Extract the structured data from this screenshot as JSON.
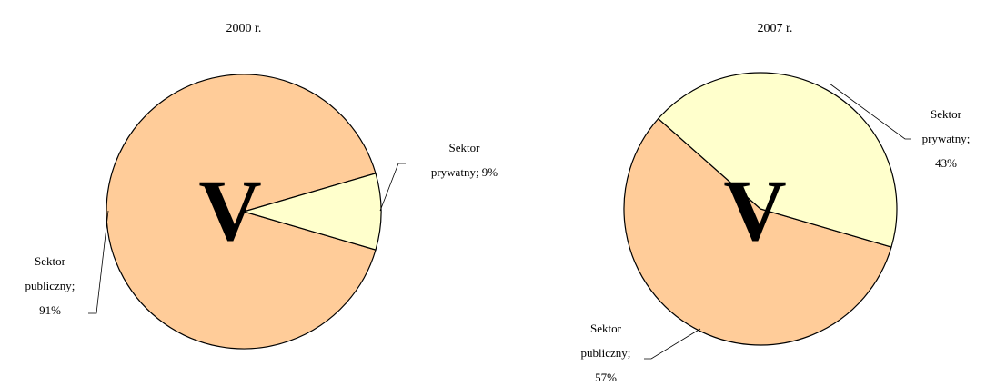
{
  "chart_data": [
    {
      "type": "pie",
      "title": "2000 r.",
      "watermark": "V",
      "values": [
        91,
        9
      ],
      "value_labels": [
        "Sektor publiczny; 91%",
        "Sektor prywatny; 9%"
      ],
      "colors": [
        "#FFCC99",
        "#FFFFCC"
      ]
    },
    {
      "type": "pie",
      "title": "2007 r.",
      "watermark": "V",
      "values": [
        57,
        43
      ],
      "value_labels": [
        "Sektor publiczny; 57%",
        "Sektor prywatny; 43%"
      ],
      "colors": [
        "#FFCC99",
        "#FFFFCC"
      ]
    }
  ]
}
